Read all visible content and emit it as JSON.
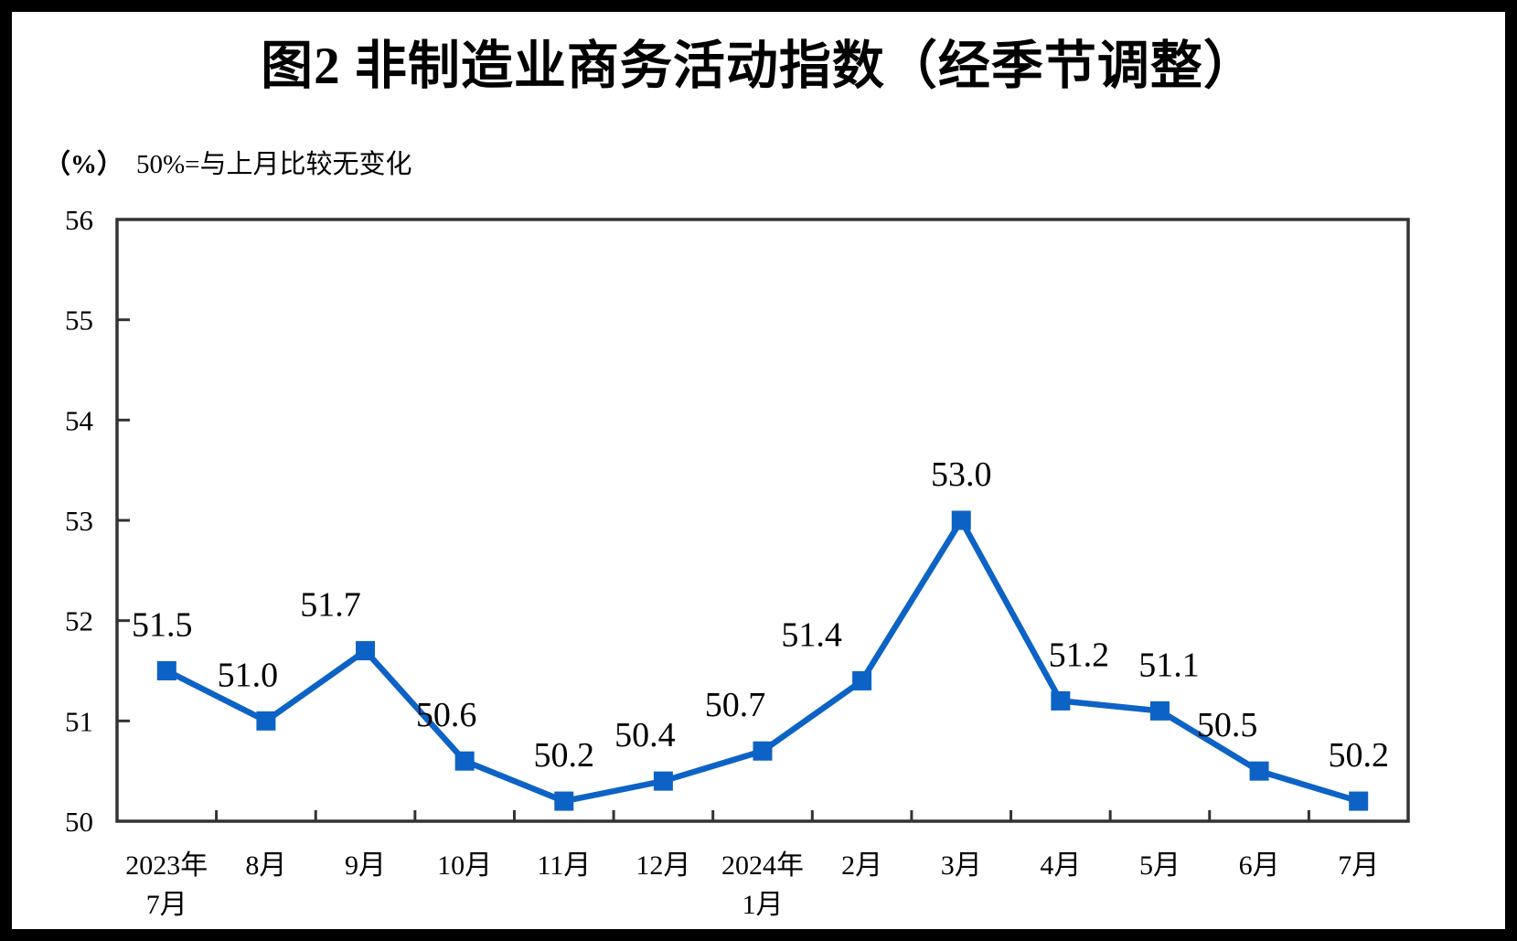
{
  "page": {
    "title": "图2 非制造业商务活动指数（经季节调整）",
    "unit_label": "（%）",
    "note": "50%=与上月比较无变化"
  },
  "chart_data": {
    "type": "line",
    "title": "图2 非制造业商务活动指数（经季节调整）",
    "unit": "%",
    "note": "50%=与上月比较无变化",
    "categories": [
      "2023年7月",
      "8月",
      "9月",
      "10月",
      "11月",
      "12月",
      "2024年1月",
      "2月",
      "3月",
      "4月",
      "5月",
      "6月",
      "7月"
    ],
    "category_lines": [
      [
        "2023年",
        "7月"
      ],
      [
        "8月"
      ],
      [
        "9月"
      ],
      [
        "10月"
      ],
      [
        "11月"
      ],
      [
        "12月"
      ],
      [
        "2024年",
        "1月"
      ],
      [
        "2月"
      ],
      [
        "3月"
      ],
      [
        "4月"
      ],
      [
        "5月"
      ],
      [
        "6月"
      ],
      [
        "7月"
      ]
    ],
    "values": [
      51.5,
      51.0,
      51.7,
      50.6,
      50.2,
      50.4,
      50.7,
      51.4,
      53.0,
      51.2,
      51.1,
      50.5,
      50.2
    ],
    "point_labels": [
      "51.5",
      "51.0",
      "51.7",
      "50.6",
      "50.2",
      "50.4",
      "50.7",
      "51.4",
      "53.0",
      "51.2",
      "51.1",
      "50.5",
      "50.2"
    ],
    "ylim": [
      50,
      56
    ],
    "yticks": [
      50,
      51,
      52,
      53,
      54,
      55,
      56
    ],
    "xlabel": "",
    "ylabel": "（%）",
    "grid": false,
    "legend": false,
    "marker": "square",
    "colors": {
      "line": "#0D63C5",
      "axis": "#333333",
      "text": "#000000",
      "frame": "#000000",
      "background": "#FFFFFF"
    }
  }
}
